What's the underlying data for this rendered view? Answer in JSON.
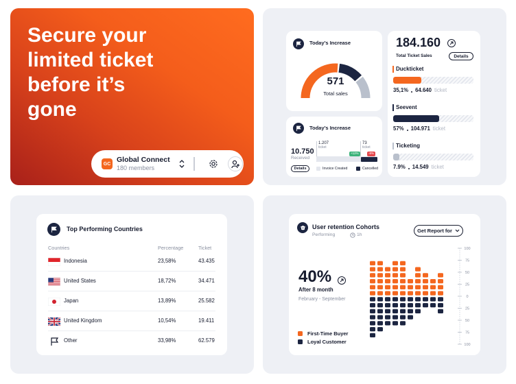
{
  "hero": {
    "headline": [
      "Secure your",
      "limited ticket",
      "before it’s",
      "gone"
    ],
    "group": {
      "initials": "GC",
      "name": "Global Connect",
      "members": "180 members"
    }
  },
  "received_card": {
    "title": "Today’s Increase",
    "value": "10.750",
    "label": "Received",
    "button": "Details",
    "bars": [
      {
        "value": "1.207",
        "unit": "ticket",
        "change": "+12%"
      },
      {
        "value": "73",
        "unit": "ticket",
        "change": "-8%"
      }
    ],
    "legend": [
      "Invoice Created",
      "Cancelled"
    ]
  },
  "countries_table": {
    "title": "Top Performing Countries",
    "columns": [
      "Countries",
      "Percentage",
      "Ticket"
    ],
    "rows": [
      [
        "Indonesia",
        "23,58%",
        "43.435"
      ],
      [
        "United States",
        "18,72%",
        "34.471"
      ],
      [
        "Japan",
        "13,89%",
        "25.582"
      ],
      [
        "United Kingdom",
        "10,54%",
        "19.411"
      ],
      [
        "Other",
        "33,98%",
        "62.579"
      ]
    ]
  },
  "chart_data": [
    {
      "type": "gauge",
      "title": "Today’s Increase",
      "center_value": "571",
      "center_label": "Total sales",
      "values": [
        53,
        25,
        22
      ],
      "colors": [
        "#f4671f",
        "#1c2541",
        "#b9c0cc"
      ]
    },
    {
      "type": "progress",
      "value": "184.160",
      "subtitle": "Total Ticket Sales",
      "button": "Details",
      "categories": [
        "Duckticket",
        "Seevent",
        "Ticketing"
      ],
      "values": [
        35.1,
        57,
        7.9
      ],
      "value_labels": [
        "35,1%",
        "57%",
        "7.9%"
      ],
      "tickets": [
        "64.640",
        "104.971",
        "14.549"
      ],
      "unit": "ticket",
      "colors": [
        "#f4671f",
        "#1c2541",
        "#b9c0cc"
      ],
      "xlim": [
        0,
        100
      ]
    },
    {
      "type": "dot",
      "title": "User retention Cohorts",
      "subtitle": "Performing",
      "interval": "1h",
      "button": "Get Report for",
      "headline": "40%",
      "headline_label": "After 8 month",
      "period": "February - September",
      "categories": [
        null,
        null,
        null,
        null,
        null,
        null,
        null,
        null,
        null,
        null
      ],
      "series": [
        {
          "name": "First-Time Buyer",
          "color": "#f4671f",
          "values": [
            75,
            75,
            62.5,
            75,
            75,
            37.5,
            62.5,
            50,
            37.5,
            50
          ]
        },
        {
          "name": "Loyal Customer",
          "color": "#1c2541",
          "values": [
            -87.5,
            -75,
            -62.5,
            -62.5,
            -62.5,
            -50,
            -37.5,
            -25,
            -25,
            -37.5
          ]
        }
      ],
      "ylim": [
        -100,
        100
      ],
      "yticks": [
        100,
        75,
        50,
        25,
        0,
        {
          "value": -25,
          "label": "25"
        },
        {
          "value": -50,
          "label": "50"
        },
        {
          "value": -75,
          "label": "75"
        },
        {
          "value": -100,
          "label": "100"
        }
      ]
    }
  ]
}
